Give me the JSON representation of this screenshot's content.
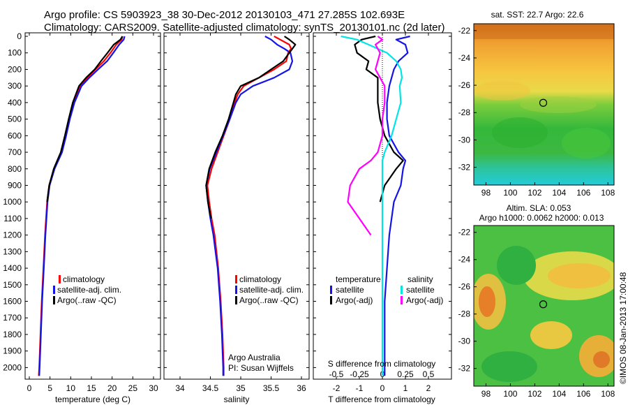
{
  "header": {
    "line1": "Argo profile: CS 5903923_38 30-Dec-2012 20130103_471 27.285S 102.693E",
    "line2": "Climatology: CARS2009. Satellite-adjusted climatology: synTS_20130101.nc (2d later)"
  },
  "colors": {
    "red": "#ff0000",
    "blue": "#1414e6",
    "black": "#000000",
    "cyan": "#00e6e6",
    "magenta": "#ff00ff"
  },
  "chart_data": [
    {
      "id": "temperature-panel",
      "type": "line",
      "xlabel": "temperature (deg C)",
      "ylabel": "",
      "xlim": [
        -2,
        31
      ],
      "ylim": [
        2070,
        0
      ],
      "x_ticks": [
        "0",
        "5",
        "10",
        "15",
        "20",
        "25",
        "30"
      ],
      "y_ticks": [
        "0",
        "100",
        "200",
        "300",
        "400",
        "500",
        "600",
        "700",
        "800",
        "900",
        "1000",
        "1100",
        "1200",
        "1300",
        "1400",
        "1500",
        "1600",
        "1700",
        "1800",
        "1900",
        "2000"
      ],
      "legend": [
        "climatology",
        "satellite-adj. clim.",
        "Argo(..raw -QC)"
      ],
      "legend_position": "lower-right",
      "depth": [
        0,
        20,
        50,
        100,
        150,
        200,
        250,
        300,
        400,
        500,
        600,
        700,
        800,
        900,
        1000,
        1200,
        1400,
        1600,
        1800,
        2000,
        2050
      ],
      "series": [
        {
          "name": "climatology",
          "color_key": "red",
          "values": [
            22.5,
            22.3,
            21.0,
            19.6,
            18.0,
            16.0,
            14.0,
            12.3,
            10.8,
            9.7,
            8.8,
            7.8,
            6.0,
            4.8,
            4.3,
            3.8,
            3.4,
            3.0,
            2.7,
            2.4,
            2.3
          ]
        },
        {
          "name": "satellite-adj. clim.",
          "color_key": "blue",
          "values": [
            23.0,
            22.8,
            21.7,
            20.3,
            18.8,
            16.6,
            14.5,
            12.6,
            10.9,
            9.8,
            8.9,
            7.9,
            6.1,
            4.9,
            4.4,
            3.9,
            3.5,
            3.1,
            2.8,
            2.5,
            2.4
          ]
        },
        {
          "name": "Argo(..raw -QC)",
          "color_key": "black",
          "values": [
            22.5,
            22.0,
            20.4,
            18.9,
            17.3,
            15.8,
            13.7,
            12.0,
            10.5,
            9.5,
            8.6,
            7.6,
            5.9,
            4.8,
            4.3
          ]
        }
      ]
    },
    {
      "id": "salinity-panel",
      "type": "line",
      "xlabel": "salinity",
      "ylabel": "",
      "xlim": [
        33.8,
        36.1
      ],
      "ylim": [
        2070,
        0
      ],
      "x_ticks": [
        "34",
        "34.5",
        "35",
        "35.5",
        "36"
      ],
      "legend": [
        "climatology",
        "satellite-adj. clim.",
        "Argo(..raw -QC)"
      ],
      "legend_position": "lower-right",
      "annotation": [
        "Argo Australia",
        "PI: Susan Wijffels"
      ],
      "depth": [
        0,
        20,
        50,
        75,
        100,
        150,
        200,
        250,
        300,
        350,
        400,
        500,
        600,
        700,
        800,
        900,
        1000,
        1100,
        1200,
        1400,
        1600,
        1800,
        2000,
        2050
      ],
      "series": [
        {
          "name": "climatology",
          "color_key": "red",
          "values": [
            35.55,
            35.65,
            35.8,
            35.83,
            35.78,
            35.75,
            35.55,
            35.3,
            35.05,
            34.95,
            34.9,
            34.82,
            34.72,
            34.62,
            34.52,
            34.45,
            34.48,
            34.52,
            34.57,
            34.63,
            34.67,
            34.7,
            34.72,
            34.72
          ]
        },
        {
          "name": "satellite-adj. clim.",
          "color_key": "blue",
          "values": [
            35.4,
            35.5,
            35.6,
            35.72,
            35.82,
            35.85,
            35.8,
            35.55,
            35.2,
            35.0,
            34.92,
            34.82,
            34.71,
            34.6,
            34.49,
            34.43,
            34.46,
            34.5,
            34.55,
            34.62,
            34.66,
            34.69,
            34.71,
            34.71
          ]
        },
        {
          "name": "Argo(..raw -QC)",
          "color_key": "black",
          "values": [
            35.72,
            35.8,
            35.9,
            35.85,
            35.8,
            35.7,
            35.5,
            35.3,
            35.0,
            34.92,
            34.88,
            34.8,
            34.7,
            34.58,
            34.48,
            34.43,
            34.46,
            34.51
          ]
        }
      ]
    },
    {
      "id": "difference-panel",
      "type": "line",
      "xlabel": "T difference from climatology",
      "x2label": "S difference from climatology",
      "xlim": [
        -2.6,
        2.5
      ],
      "ylim": [
        2070,
        0
      ],
      "x_ticks": [
        "-2",
        "-1",
        "0",
        "1",
        "2"
      ],
      "x2_ticks": [
        "-0.5",
        "-0.25",
        "0",
        "0.25",
        "0.5"
      ],
      "legend_title_left": "temperature",
      "legend_title_right": "salinity",
      "legend": [
        "satellite",
        "Argo(-adj)",
        "satellite",
        "Argo(-adj)"
      ],
      "depth": [
        0,
        20,
        50,
        100,
        150,
        200,
        250,
        300,
        400,
        500,
        600,
        700,
        750,
        800,
        900,
        1000,
        1200,
        1400,
        1600,
        1800,
        2000,
        2050
      ],
      "series": [
        {
          "name": "satellite",
          "quantity": "temperature",
          "color_key": "blue",
          "values": [
            1.2,
            0.6,
            1.0,
            1.1,
            0.7,
            0.5,
            0.4,
            0.3,
            0.2,
            0.2,
            0.3,
            0.7,
            1.0,
            0.9,
            0.8,
            0.5,
            0.3,
            0.2,
            0.1,
            0.1,
            0.1,
            0.1
          ]
        },
        {
          "name": "Argo(-adj)",
          "quantity": "temperature",
          "color_key": "black",
          "values": [
            -0.3,
            -0.9,
            -1.2,
            -1.1,
            -0.6,
            -0.7,
            -0.2,
            -0.2,
            -0.2,
            -0.1,
            0.1,
            0.5,
            0.9,
            0.6,
            0.1,
            -0.1
          ]
        },
        {
          "name": "satellite",
          "quantity": "salinity",
          "color_key": "cyan",
          "values": [
            -1.8,
            -1.1,
            -0.6,
            0.2,
            0.6,
            0.8,
            0.85,
            0.75,
            0.8,
            0.6,
            0.4,
            0.1,
            0.0,
            0.0,
            0.0,
            0.0,
            0.0,
            0.0,
            0.0,
            0.0,
            0.0,
            0.0
          ]
        },
        {
          "name": "Argo(-adj)",
          "quantity": "salinity",
          "color_key": "magenta",
          "values": [
            -0.2,
            0.0,
            -0.3,
            -0.1,
            -0.2,
            -0.3,
            -0.1,
            0.1,
            0.1,
            0.0,
            0.0,
            -0.2,
            -0.5,
            -1.0,
            -1.4,
            -1.5,
            -0.5
          ]
        }
      ]
    },
    {
      "id": "sst-map",
      "type": "heatmap",
      "title": "sat. SST: 22.7  Argo: 22.6",
      "xlim": [
        97,
        108.5
      ],
      "ylim": [
        -33.3,
        -21.5
      ],
      "x_ticks": [
        "98",
        "100",
        "102",
        "104",
        "106",
        "108"
      ],
      "y_ticks": [
        "-22",
        "-24",
        "-26",
        "-28",
        "-30",
        "-32"
      ],
      "marker": {
        "lon": 102.693,
        "lat": -27.285
      }
    },
    {
      "id": "sla-map",
      "type": "heatmap",
      "title": "Altim. SLA: 0.053",
      "subtitle": "Argo h1000: 0.0062 h2000: 0.013",
      "xlim": [
        97,
        108.5
      ],
      "ylim": [
        -33.3,
        -21.5
      ],
      "x_ticks": [
        "98",
        "100",
        "102",
        "104",
        "106",
        "108"
      ],
      "y_ticks": [
        "-22",
        "-24",
        "-26",
        "-28",
        "-30",
        "-32"
      ],
      "marker": {
        "lon": 102.693,
        "lat": -27.285
      }
    }
  ],
  "footer": {
    "timestamp": "©IMOS 08-Jan-2013 17:00:48"
  }
}
